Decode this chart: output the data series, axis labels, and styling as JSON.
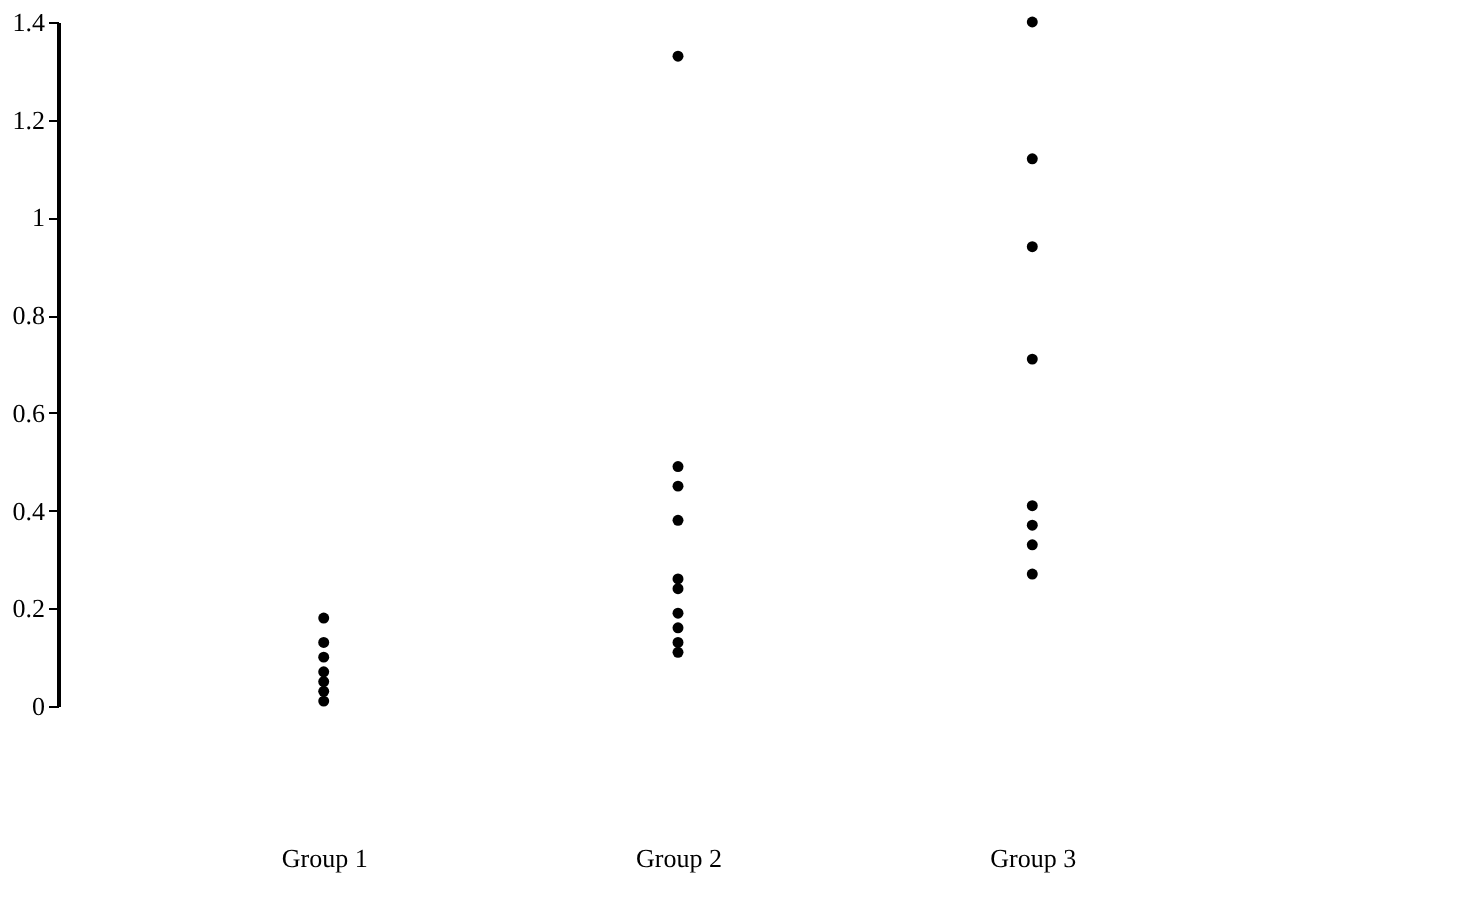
{
  "chart_data": {
    "type": "scatter",
    "categories": [
      "Group 1",
      "Group 2",
      "Group 3"
    ],
    "series": [
      {
        "color": "#000000",
        "x": [
          "Group 1",
          "Group 1",
          "Group 1",
          "Group 1",
          "Group 1",
          "Group 1",
          "Group 1"
        ],
        "values": [
          0.18,
          0.13,
          0.1,
          0.07,
          0.05,
          0.03,
          0.01
        ]
      },
      {
        "color": "#000000",
        "x": [
          "Group 2",
          "Group 2",
          "Group 2",
          "Group 2",
          "Group 2",
          "Group 2",
          "Group 2",
          "Group 2",
          "Group 2",
          "Group 2"
        ],
        "values": [
          1.33,
          0.49,
          0.45,
          0.38,
          0.26,
          0.24,
          0.19,
          0.16,
          0.13,
          0.11
        ]
      },
      {
        "color": "#000000",
        "x": [
          "Group 3",
          "Group 3",
          "Group 3",
          "Group 3",
          "Group 3",
          "Group 3",
          "Group 3",
          "Group 3"
        ],
        "values": [
          1.4,
          1.12,
          0.94,
          0.71,
          0.41,
          0.37,
          0.33,
          0.27
        ]
      }
    ],
    "ylim": [
      0,
      1.4
    ],
    "yticks": [
      0,
      0.2,
      0.4,
      0.6,
      0.8,
      1,
      1.2,
      1.4
    ],
    "marker": "circle",
    "grid": false
  }
}
